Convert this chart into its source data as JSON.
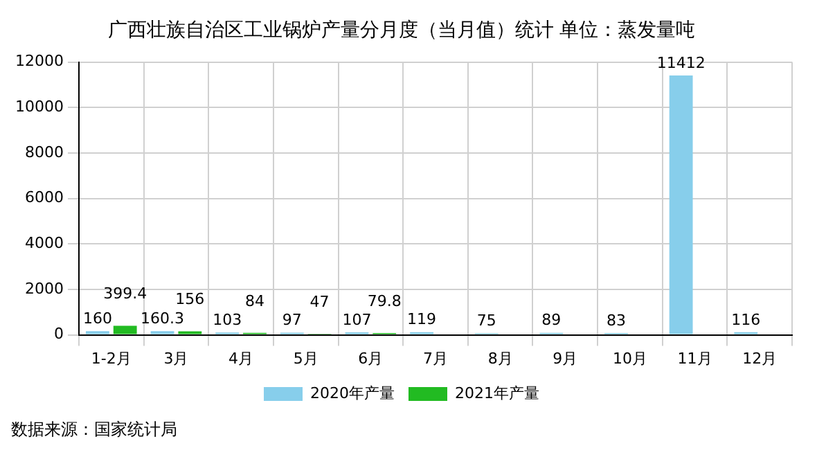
{
  "chart_data": {
    "type": "bar",
    "title": "广西壮族自治区工业锅炉产量分月度（当月值）统计 单位：蒸发量吨",
    "categories": [
      "1-2月",
      "3月",
      "4月",
      "5月",
      "6月",
      "7月",
      "8月",
      "9月",
      "10月",
      "11月",
      "12月"
    ],
    "series": [
      {
        "name": "2020年产量",
        "color": "#87ceeb",
        "values": [
          160,
          160.3,
          103,
          97,
          107,
          119,
          75,
          89,
          83,
          11412,
          116
        ]
      },
      {
        "name": "2021年产量",
        "color": "#22bb22",
        "values": [
          399.4,
          156,
          84,
          47,
          79.8,
          null,
          null,
          null,
          null,
          null,
          null
        ]
      }
    ],
    "ylim": [
      0,
      12000
    ],
    "yticks": [
      0,
      2000,
      4000,
      6000,
      8000,
      10000,
      12000
    ],
    "grid": true,
    "legend": "bottom",
    "data_labels": true,
    "annotations": [
      "数据来源：国家统计局"
    ]
  }
}
